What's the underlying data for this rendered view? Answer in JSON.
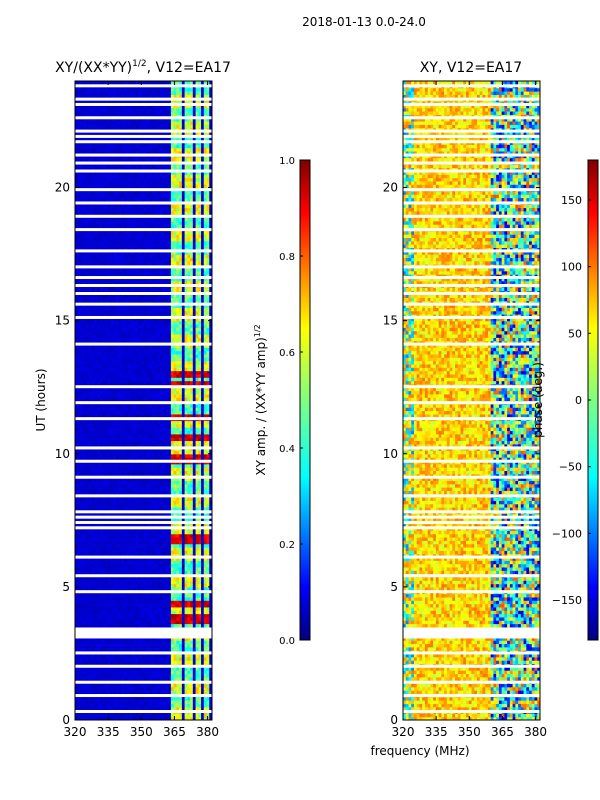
{
  "suptitle": "2018-01-13 0.0-24.0",
  "xlabel": "frequency (MHz)",
  "chart_data": [
    {
      "type": "heatmap",
      "title": "XY/(XX*YY)",
      "title_exponent": "1/2",
      "title_suffix": ", V12=EA17",
      "ylabel": "UT (hours)",
      "xlim": [
        320,
        382
      ],
      "ylim": [
        0,
        24
      ],
      "x_ticks": [
        320,
        335,
        350,
        365,
        380
      ],
      "y_ticks": [
        0,
        5,
        10,
        15,
        20
      ],
      "colorbar": {
        "label": "XY amp. / (XX*YY amp)",
        "label_exponent": "1/2",
        "range": [
          0.0,
          1.0
        ],
        "ticks": [
          "0.0",
          "0.2",
          "0.4",
          "0.6",
          "0.8",
          "1.0"
        ]
      },
      "background_value": 0.08,
      "band_ranges_mhz": [
        [
          363,
          368
        ],
        [
          369,
          373
        ],
        [
          374,
          377
        ],
        [
          378,
          381
        ]
      ],
      "band_value_bright": 0.6,
      "band_value_dim": 0.45,
      "peak_hours": [
        3.8,
        4.4,
        6.8,
        9.8,
        10.6,
        11.4,
        12.6,
        13.0
      ]
    },
    {
      "type": "heatmap",
      "title": "XY, V12=EA17",
      "xlim": [
        320,
        382
      ],
      "ylim": [
        0,
        24
      ],
      "x_ticks": [
        320,
        335,
        350,
        365,
        380
      ],
      "y_ticks": [
        0,
        5,
        10,
        15,
        20
      ],
      "colorbar": {
        "label": "phase (deg.)",
        "range": [
          -180,
          180
        ],
        "ticks": [
          "−150",
          "−100",
          "−50",
          "0",
          "50",
          "100",
          "150"
        ],
        "tick_values": [
          -150,
          -100,
          -50,
          0,
          50,
          100,
          150
        ]
      },
      "low_freq_phase_deg": 60,
      "high_freq_phase_deg": -20
    }
  ],
  "missing_hours": [
    0.3,
    0.9,
    1.4,
    2.0,
    2.5,
    3.1,
    3.2,
    3.3,
    3.4,
    4.8,
    5.4,
    6.1,
    7.2,
    7.4,
    7.6,
    7.8,
    8.4,
    9.1,
    9.7,
    10.2,
    11.3,
    11.9,
    12.5,
    14.1,
    15.1,
    15.6,
    16.0,
    16.3,
    16.6,
    17.0,
    17.6,
    18.4,
    18.9,
    19.4,
    19.9,
    20.6,
    20.9,
    21.2,
    21.7,
    21.9,
    22.1,
    22.6,
    23.1,
    23.3,
    23.8
  ]
}
